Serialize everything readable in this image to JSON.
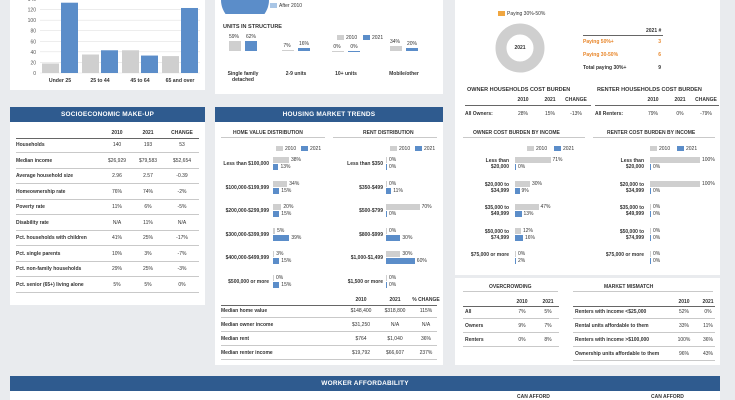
{
  "age_chart": {
    "y_ticks": [
      "140",
      "120",
      "100",
      "80",
      "60",
      "40",
      "20",
      "0"
    ],
    "categories": [
      "Under 25",
      "25 to 44",
      "45 to 64",
      "65 and over"
    ],
    "series": [
      {
        "name": "2010",
        "values": [
          18,
          35,
          43,
          32
        ]
      },
      {
        "name": "2021",
        "values": [
          133,
          43,
          33,
          123
        ]
      }
    ],
    "ylim": [
      0,
      140
    ]
  },
  "pie_top": {
    "legend_after": "After 2010"
  },
  "units": {
    "title": "UNITS IN STRUCTURE",
    "legend": [
      "2010",
      "2021"
    ],
    "categories": [
      "Single family detached",
      "2-9 units",
      "10+ units",
      "Mobile/other"
    ],
    "cat_line1": [
      "Single family",
      "2-9 units",
      "10+ units",
      "Mobile/other"
    ],
    "cat_line2": [
      "detached",
      "",
      "",
      ""
    ],
    "v2010": [
      59,
      7,
      0,
      34
    ],
    "v2021": [
      62,
      16,
      0,
      20
    ],
    "labels2010": [
      "59%",
      "7%",
      "0%",
      "34%"
    ],
    "labels2021": [
      "62%",
      "16%",
      "0%",
      "20%"
    ]
  },
  "rent_burden_pie": {
    "legend_partial": "Paying 30%-50%",
    "center_label": "2021",
    "col_header": "2021 #",
    "rows": [
      {
        "label": "Paying 50%+",
        "value": "3"
      },
      {
        "label": "Paying 30-50%",
        "value": "6"
      },
      {
        "label": "Total paying 30%+",
        "value": "9"
      }
    ]
  },
  "owner_cost_burden": {
    "title": "OWNER HOUSEHOLDS COST BURDEN",
    "cols": [
      "2010",
      "2021",
      "CHANGE"
    ],
    "row_label": "All Owners:",
    "values": [
      "28%",
      "15%",
      "-13%"
    ]
  },
  "renter_cost_burden": {
    "title": "RENTER HOUSEHOLDS COST BURDEN",
    "cols": [
      "2010",
      "2021",
      "CHANGE"
    ],
    "row_label": "All Renters:",
    "values": [
      "79%",
      "0%",
      "-79%"
    ]
  },
  "socio": {
    "title": "SOCIOECONOMIC MAKE-UP",
    "cols": [
      "2010",
      "2021",
      "CHANGE"
    ],
    "rows": [
      {
        "label": "Households",
        "v1": "140",
        "v2": "193",
        "ch": "53"
      },
      {
        "label": "Median income",
        "v1": "$26,929",
        "v2": "$79,583",
        "ch": "$52,654"
      },
      {
        "label": "Average household size",
        "v1": "2.96",
        "v2": "2.57",
        "ch": "-0.39"
      },
      {
        "label": "Homeownership rate",
        "v1": "76%",
        "v2": "74%",
        "ch": "-2%"
      },
      {
        "label": "Poverty rate",
        "v1": "11%",
        "v2": "6%",
        "ch": "-5%"
      },
      {
        "label": "Disability rate",
        "v1": "N/A",
        "v2": "11%",
        "ch": "N/A"
      },
      {
        "label": "Pct. households with children",
        "v1": "41%",
        "v2": "25%",
        "ch": "-17%"
      },
      {
        "label": "Pct. single parents",
        "v1": "10%",
        "v2": "3%",
        "ch": "-7%"
      },
      {
        "label": "Pct. non-family households",
        "v1": "29%",
        "v2": "25%",
        "ch": "-3%"
      },
      {
        "label": "Pct. senior (65+) living alone",
        "v1": "5%",
        "v2": "5%",
        "ch": "0%"
      }
    ]
  },
  "housing": {
    "title": "HOUSING MARKET TRENDS",
    "hv_title": "HOME VALUE DISTRIBUTION",
    "rent_title": "RENT DISTRIBUTION",
    "legend": [
      "2010",
      "2021"
    ],
    "hv_rows": [
      {
        "label": "Less than $100,000",
        "v1": 38,
        "v2": 13,
        "l1": "38%",
        "l2": "13%"
      },
      {
        "label": "$100,000-$199,999",
        "v1": 34,
        "v2": 15,
        "l1": "34%",
        "l2": "15%"
      },
      {
        "label": "$200,000-$299,999",
        "v1": 20,
        "v2": 15,
        "l1": "20%",
        "l2": "15%"
      },
      {
        "label": "$300,000-$399,999",
        "v1": 5,
        "v2": 39,
        "l1": "5%",
        "l2": "39%"
      },
      {
        "label": "$400,000-$499,999",
        "v1": 3,
        "v2": 15,
        "l1": "3%",
        "l2": "15%"
      },
      {
        "label": "$500,000 or more",
        "v1": 0,
        "v2": 15,
        "l1": "0%",
        "l2": "15%"
      }
    ],
    "rent_rows": [
      {
        "label": "Less than $350",
        "v1": 0,
        "v2": 0,
        "l1": "0%",
        "l2": "0%"
      },
      {
        "label": "$350-$499",
        "v1": 0,
        "v2": 11,
        "l1": "0%",
        "l2": "11%"
      },
      {
        "label": "$500-$799",
        "v1": 70,
        "v2": 0,
        "l1": "70%",
        "l2": "0%"
      },
      {
        "label": "$800-$999",
        "v1": 0,
        "v2": 30,
        "l1": "0%",
        "l2": "30%"
      },
      {
        "label": "$1,000-$1,499",
        "v1": 30,
        "v2": 60,
        "l1": "30%",
        "l2": "60%"
      },
      {
        "label": "$1,500 or more",
        "v1": 0,
        "v2": 0,
        "l1": "0%",
        "l2": "0%"
      }
    ],
    "cols": [
      "2010",
      "2021",
      "% CHANGE"
    ],
    "table": [
      {
        "label": "Median home value",
        "v1": "$148,400",
        "v2": "$318,800",
        "ch": "115%"
      },
      {
        "label": "Median owner income",
        "v1": "$31,250",
        "v2": "N/A",
        "ch": "N/A"
      },
      {
        "label": "Median rent",
        "v1": "$764",
        "v2": "$1,040",
        "ch": "36%"
      },
      {
        "label": "Median renter income",
        "v1": "$19,792",
        "v2": "$66,607",
        "ch": "237%"
      }
    ]
  },
  "owner_income": {
    "title": "OWNER COST BURDEN BY INCOME",
    "legend": [
      "2010",
      "2021"
    ],
    "rows": [
      {
        "l1": "Less than",
        "l2": "$20,000",
        "v1": 71,
        "v2": 0,
        "p1": "71%",
        "p2": "0%"
      },
      {
        "l1": "$20,000 to",
        "l2": "$34,999",
        "v1": 30,
        "v2": 9,
        "p1": "30%",
        "p2": "9%"
      },
      {
        "l1": "$35,000 to",
        "l2": "$49,999",
        "v1": 47,
        "v2": 13,
        "p1": "47%",
        "p2": "13%"
      },
      {
        "l1": "$50,000 to",
        "l2": "$74,999",
        "v1": 12,
        "v2": 16,
        "p1": "12%",
        "p2": "16%"
      },
      {
        "l1": "$75,000 or more",
        "l2": "",
        "v1": 0,
        "v2": 2,
        "p1": "0%",
        "p2": "2%"
      }
    ]
  },
  "renter_income": {
    "title": "RENTER COST BURDEN BY INCOME",
    "legend": [
      "2010",
      "2021"
    ],
    "rows": [
      {
        "l1": "Less than",
        "l2": "$20,000",
        "v1": 100,
        "v2": 0,
        "p1": "100%",
        "p2": "0%"
      },
      {
        "l1": "$20,000 to",
        "l2": "$34,999",
        "v1": 100,
        "v2": 0,
        "p1": "100%",
        "p2": "0%"
      },
      {
        "l1": "$35,000 to",
        "l2": "$49,999",
        "v1": 0,
        "v2": 0,
        "p1": "0%",
        "p2": "0%"
      },
      {
        "l1": "$50,000 to",
        "l2": "$74,999",
        "v1": 0,
        "v2": 0,
        "p1": "0%",
        "p2": "0%"
      },
      {
        "l1": "$75,000 or more",
        "l2": "",
        "v1": 0,
        "v2": 0,
        "p1": "0%",
        "p2": "0%"
      }
    ]
  },
  "overcrowding": {
    "title": "OVERCROWDING",
    "cols": [
      "2010",
      "2021"
    ],
    "rows": [
      {
        "label": "All",
        "v1": "7%",
        "v2": "5%"
      },
      {
        "label": "Owners",
        "v1": "9%",
        "v2": "7%"
      },
      {
        "label": "Renters",
        "v1": "0%",
        "v2": "8%"
      }
    ]
  },
  "mismatch": {
    "title": "MARKET MISMATCH",
    "cols": [
      "2010",
      "2021"
    ],
    "rows": [
      {
        "label": "Renters with income <$25,000",
        "v1": "52%",
        "v2": "0%"
      },
      {
        "label": "Rental units affordable to them",
        "v1": "33%",
        "v2": "11%"
      },
      {
        "label": "Renters with income >$100,000",
        "v1": "100%",
        "v2": "36%"
      },
      {
        "label": "Ownership units affordable to them",
        "v1": "96%",
        "v2": "43%"
      }
    ]
  },
  "worker": {
    "title": "WORKER AFFORDABILITY",
    "col1": "CAN AFFORD",
    "col2": "CAN AFFORD"
  }
}
